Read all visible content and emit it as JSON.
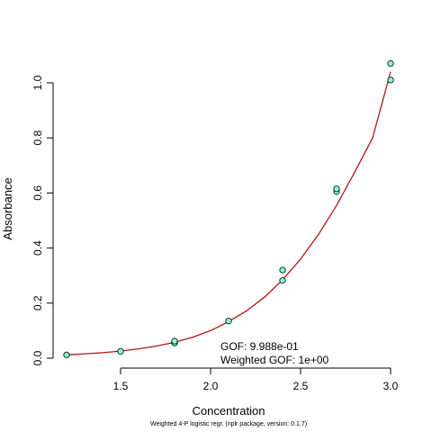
{
  "chart_data": {
    "type": "scatter",
    "title": "",
    "xlabel": "Concentration",
    "ylabel": "Absorbance",
    "xlim": [
      1.14,
      3.06
    ],
    "ylim": [
      -0.03,
      1.1
    ],
    "x_ticks": [
      "1.5",
      "2.0",
      "2.5",
      "3.0"
    ],
    "y_ticks": [
      "0.0",
      "0.2",
      "0.4",
      "0.6",
      "0.8",
      "1.0"
    ],
    "grid": false,
    "points": [
      {
        "x": 1.2,
        "y": 0.012
      },
      {
        "x": 1.5,
        "y": 0.025
      },
      {
        "x": 1.8,
        "y": 0.055
      },
      {
        "x": 1.8,
        "y": 0.062
      },
      {
        "x": 2.1,
        "y": 0.135
      },
      {
        "x": 2.4,
        "y": 0.282
      },
      {
        "x": 2.4,
        "y": 0.32
      },
      {
        "x": 2.7,
        "y": 0.605
      },
      {
        "x": 2.7,
        "y": 0.615
      },
      {
        "x": 3.0,
        "y": 1.01
      },
      {
        "x": 3.0,
        "y": 1.07
      }
    ],
    "curve": {
      "x": [
        1.2,
        1.3,
        1.4,
        1.5,
        1.6,
        1.7,
        1.8,
        1.9,
        2.0,
        2.1,
        2.2,
        2.3,
        2.4,
        2.5,
        2.6,
        2.7,
        2.8,
        2.9,
        3.0
      ],
      "y": [
        0.012,
        0.016,
        0.02,
        0.026,
        0.034,
        0.044,
        0.058,
        0.076,
        0.1,
        0.133,
        0.172,
        0.222,
        0.285,
        0.36,
        0.45,
        0.555,
        0.675,
        0.8,
        1.04
      ]
    },
    "annotations": [
      "GOF: 9.988e-01",
      "Weighted GOF: 1e+00"
    ],
    "footer": "Weighted 4-P logistic regr. (nplr package, version: 0.1.7)",
    "colors": {
      "points": "#7fffd4",
      "curve": "#b01515",
      "axis": "#000000"
    }
  }
}
